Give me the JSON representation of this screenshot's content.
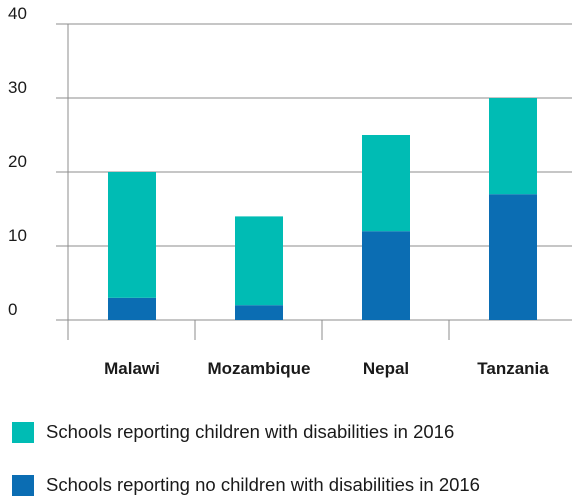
{
  "chart_data": {
    "type": "bar",
    "stacked": true,
    "categories": [
      "Malawi",
      "Mozambique",
      "Nepal",
      "Tanzania"
    ],
    "series": [
      {
        "name": "Schools reporting no children with disabilities in 2016",
        "color": "#0b6db3",
        "values": [
          3,
          2,
          12,
          17
        ]
      },
      {
        "name": "Schools reporting children with disabilities in 2016",
        "color": "#00bcb4",
        "values": [
          17,
          12,
          13,
          13
        ]
      }
    ],
    "ylim": [
      0,
      40
    ],
    "yticks": [
      "0",
      "10",
      "20",
      "30",
      "40"
    ],
    "grid": true,
    "legend_placement": "bottom"
  },
  "legend": {
    "items": [
      {
        "label": "Schools reporting children with disabilities in 2016",
        "color": "#00bcb4"
      },
      {
        "label": "Schools reporting no children with disabilities in 2016",
        "color": "#0b6db3"
      }
    ]
  }
}
